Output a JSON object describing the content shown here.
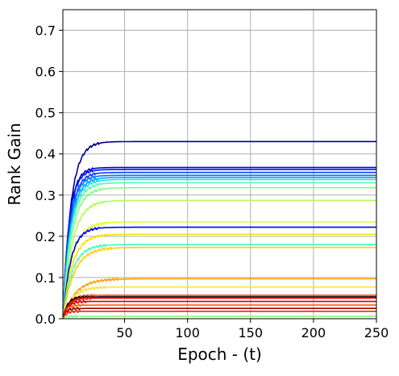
{
  "chart_data": {
    "type": "line",
    "title": "",
    "xlabel": "Epoch - (t)",
    "ylabel": "Rank Gain",
    "xlim": [
      1,
      250
    ],
    "ylim": [
      0,
      0.75
    ],
    "xticks": [
      50,
      100,
      150,
      200,
      250
    ],
    "yticks": [
      0.0,
      0.1,
      0.2,
      0.3,
      0.4,
      0.5,
      0.6,
      0.7
    ],
    "xtick_labels": [
      "50",
      "100",
      "150",
      "200",
      "250"
    ],
    "ytick_labels": [
      "0.0",
      "0.1",
      "0.2",
      "0.3",
      "0.4",
      "0.5",
      "0.6",
      "0.7"
    ],
    "grid": true,
    "legend": "none",
    "series": [
      {
        "color": "#00008f",
        "plateau": 0.43,
        "rise_epoch": 25
      },
      {
        "color": "#0000c8",
        "plateau": 0.367,
        "rise_epoch": 20
      },
      {
        "color": "#0010ff",
        "plateau": 0.362,
        "rise_epoch": 20
      },
      {
        "color": "#0040ff",
        "plateau": 0.355,
        "rise_epoch": 22
      },
      {
        "color": "#0070ff",
        "plateau": 0.348,
        "rise_epoch": 22
      },
      {
        "color": "#00a0ff",
        "plateau": 0.343,
        "rise_epoch": 24
      },
      {
        "color": "#20e0e0",
        "plateau": 0.338,
        "rise_epoch": 25
      },
      {
        "color": "#50ffaf",
        "plateau": 0.33,
        "rise_epoch": 26
      },
      {
        "color": "#80ff80",
        "plateau": 0.318,
        "rise_epoch": 28
      },
      {
        "color": "#b0ff50",
        "plateau": 0.287,
        "rise_epoch": 30
      },
      {
        "color": "#e0ff20",
        "plateau": 0.235,
        "rise_epoch": 30
      },
      {
        "color": "#0000ff",
        "plateau": 0.222,
        "rise_epoch": 25
      },
      {
        "color": "#ffe000",
        "plateau": 0.205,
        "rise_epoch": 30
      },
      {
        "color": "#40ffc0",
        "plateau": 0.18,
        "rise_epoch": 30
      },
      {
        "color": "#ffd000",
        "plateau": 0.173,
        "rise_epoch": 35
      },
      {
        "color": "#ffa000",
        "plateau": 0.097,
        "rise_epoch": 40
      },
      {
        "color": "#ffe040",
        "plateau": 0.077,
        "rise_epoch": 30
      },
      {
        "color": "#ff4000",
        "plateau": 0.057,
        "rise_epoch": 20
      },
      {
        "color": "#000000",
        "plateau": 0.053,
        "rise_epoch": 15
      },
      {
        "color": "#ff0000",
        "plateau": 0.05,
        "rise_epoch": 18
      },
      {
        "color": "#d00000",
        "plateau": 0.042,
        "rise_epoch": 15
      },
      {
        "color": "#ff6000",
        "plateau": 0.033,
        "rise_epoch": 12
      },
      {
        "color": "#a00000",
        "plateau": 0.025,
        "rise_epoch": 10
      },
      {
        "color": "#ff2000",
        "plateau": 0.018,
        "rise_epoch": 10
      },
      {
        "color": "#80ff80",
        "plateau": 0.006,
        "rise_epoch": 8
      }
    ]
  }
}
